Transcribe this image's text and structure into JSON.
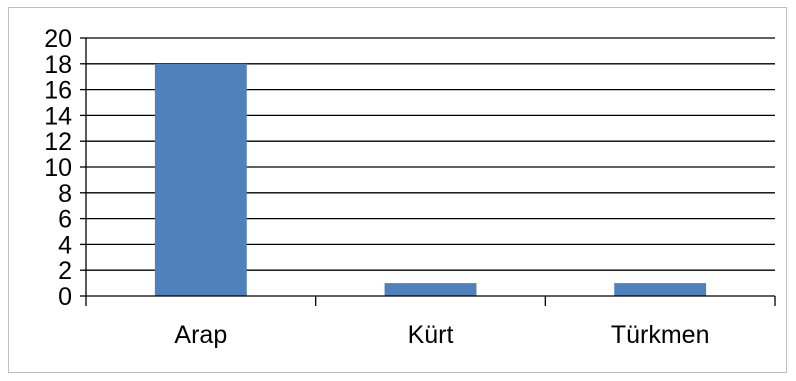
{
  "chart_data": {
    "type": "bar",
    "categories": [
      "Arap",
      "Kürt",
      "Türkmen"
    ],
    "values": [
      18,
      1,
      1
    ],
    "title": "",
    "xlabel": "",
    "ylabel": "",
    "ylim": [
      0,
      20
    ],
    "yticks": [
      "0",
      "2",
      "4",
      "6",
      "8",
      "10",
      "12",
      "14",
      "16",
      "18",
      "20"
    ],
    "grid": true,
    "legend": "none",
    "bar_color": "#4f81bd"
  }
}
